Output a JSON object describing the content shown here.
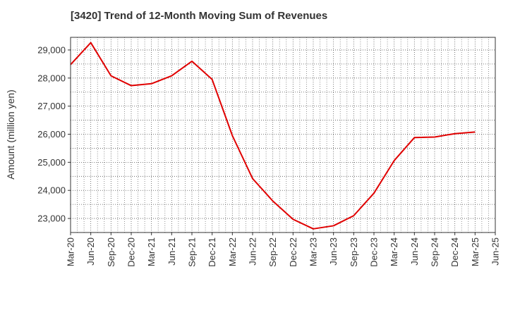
{
  "chart_data": {
    "type": "line",
    "title": "[3420]  Trend of 12-Month Moving Sum of Revenues",
    "xlabel": "",
    "ylabel": "Amount (million yen)",
    "x_ticks": [
      "Mar-20",
      "Jun-20",
      "Sep-20",
      "Dec-20",
      "Mar-21",
      "Jun-21",
      "Sep-21",
      "Dec-21",
      "Mar-22",
      "Jun-22",
      "Sep-22",
      "Dec-22",
      "Mar-23",
      "Jun-23",
      "Sep-23",
      "Dec-23",
      "Mar-24",
      "Jun-24",
      "Sep-24",
      "Dec-24",
      "Mar-25",
      "Jun-25"
    ],
    "y_ticks": [
      "23,000",
      "24,000",
      "25,000",
      "26,000",
      "27,000",
      "28,000",
      "29,000"
    ],
    "ylim": [
      22500,
      29450
    ],
    "grid": true,
    "series": [
      {
        "color": "#e00000",
        "x": [
          "Mar-20",
          "Jun-20",
          "Sep-20",
          "Dec-20",
          "Mar-21",
          "Jun-21",
          "Sep-21",
          "Dec-21",
          "Mar-22",
          "Jun-22",
          "Sep-22",
          "Dec-22",
          "Mar-23",
          "Jun-23",
          "Sep-23",
          "Dec-23",
          "Mar-24",
          "Jun-24",
          "Sep-24",
          "Dec-24",
          "Mar-25"
        ],
        "values": [
          28480,
          29260,
          28080,
          27730,
          27800,
          28080,
          28600,
          27950,
          25950,
          24420,
          23620,
          22970,
          22630,
          22740,
          23100,
          23900,
          25060,
          25880,
          25900,
          26020,
          26080
        ]
      }
    ]
  }
}
